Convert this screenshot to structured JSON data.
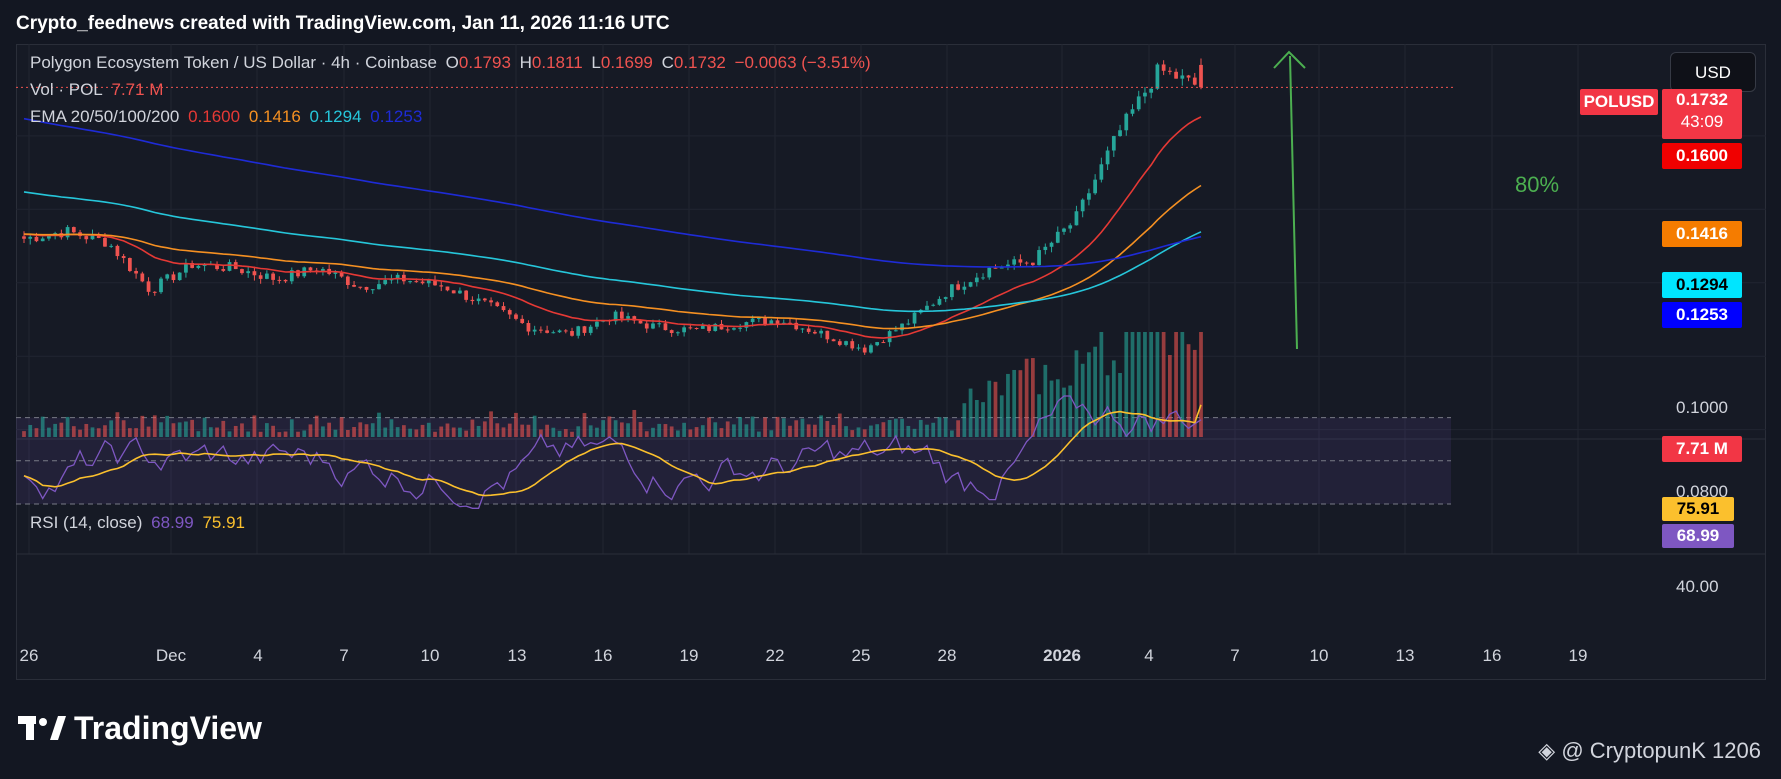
{
  "header": {
    "attribution": "Crypto_feednews created with TradingView.com, Jan 11, 2026 11:16 UTC"
  },
  "legend": {
    "symbol": "Polygon Ecosystem Token / US Dollar · 4h · Coinbase",
    "o_label": "O",
    "o": "0.1793",
    "h_label": "H",
    "h": "0.1811",
    "l_label": "L",
    "l": "0.1699",
    "c_label": "C",
    "c": "0.1732",
    "change": "−0.0063 (−3.51%)",
    "vol_label": "Vol · POL",
    "vol": "7.71 M",
    "ema_label": "EMA 20/50/100/200",
    "ema20": "0.1600",
    "ema50": "0.1416",
    "ema100": "0.1294",
    "ema200": "0.1253",
    "rsi_label": "RSI (14, close)",
    "rsi": "68.99",
    "rsi_ma": "75.91"
  },
  "currency_button": "USD",
  "price_tags": {
    "ticker": "POLUSD",
    "last": "0.1732",
    "countdown": "43:09",
    "ema20": "0.1600",
    "ema50": "0.1416",
    "ema100": "0.1294",
    "ema200": "0.1253",
    "volume": "7.71 M",
    "rsi_ma": "75.91",
    "rsi": "68.99"
  },
  "axis": {
    "price_1": "0.1000",
    "price_2": "0.0800",
    "rsi_1": "40.00"
  },
  "annotation": {
    "percent": "80%"
  },
  "footer": {
    "logo": "TradingView",
    "credit": "@ CryptopunK 1206"
  },
  "colors": {
    "up": "#26a69a",
    "down": "#ef5350",
    "ema20": "#e53935",
    "ema50": "#f59022",
    "ema100": "#26c6da",
    "ema200": "#1e2bd6",
    "rsi": "#7e57c2",
    "rsi_ma": "#fbc02d",
    "arrow": "#4caf50"
  },
  "chart_data": {
    "type": "candlestick",
    "timeframe": "4h",
    "x_tick_labels": [
      "26",
      "Dec",
      "4",
      "7",
      "10",
      "13",
      "16",
      "19",
      "22",
      "25",
      "28",
      "2026",
      "4",
      "7",
      "10",
      "13",
      "16",
      "19"
    ],
    "series": [
      {
        "name": "Polygon Ecosystem Token / US Dollar",
        "approx_close_path": [
          [
            "Nov 26",
            0.132
          ],
          [
            "Nov 28",
            0.134
          ],
          [
            "Dec 1",
            0.131
          ],
          [
            "Dec 2",
            0.118
          ],
          [
            "Dec 3",
            0.125
          ],
          [
            "Dec 5",
            0.124
          ],
          [
            "Dec 7",
            0.121
          ],
          [
            "Dec 10",
            0.124
          ],
          [
            "Dec 11",
            0.119
          ],
          [
            "Dec 13",
            0.121
          ],
          [
            "Dec 15",
            0.119
          ],
          [
            "Dec 16",
            0.114
          ],
          [
            "Dec 18",
            0.108
          ],
          [
            "Dec 19",
            0.106
          ],
          [
            "Dec 20",
            0.111
          ],
          [
            "Dec 23",
            0.108
          ],
          [
            "Dec 26",
            0.107
          ],
          [
            "Dec 28",
            0.109
          ],
          [
            "Dec 29",
            0.11
          ],
          [
            "Dec 30",
            0.106
          ],
          [
            "Jan 1",
            0.102
          ],
          [
            "Jan 2",
            0.109
          ],
          [
            "Jan 4",
            0.118
          ],
          [
            "Jan 6",
            0.124
          ],
          [
            "Jan 8",
            0.126
          ],
          [
            "Jan 9",
            0.137
          ],
          [
            "Jan 10",
            0.16
          ],
          [
            "Jan 10 16h",
            0.178
          ],
          [
            "Jan 11",
            0.1732
          ]
        ]
      },
      {
        "name": "EMA 20",
        "last": 0.16
      },
      {
        "name": "EMA 50",
        "last": 0.1416
      },
      {
        "name": "EMA 100",
        "last": 0.1294
      },
      {
        "name": "EMA 200",
        "last": 0.1253
      },
      {
        "name": "Vol · POL",
        "last": "7.71 M"
      },
      {
        "name": "RSI (14, close)",
        "last": 68.99,
        "ma_last": 75.91
      }
    ],
    "ohlc_last": {
      "open": 0.1793,
      "high": 0.1811,
      "low": 0.1699,
      "close": 0.1732
    },
    "ylim": [
      0.078,
      0.185
    ],
    "rsi_bands": [
      30,
      50,
      70
    ]
  }
}
